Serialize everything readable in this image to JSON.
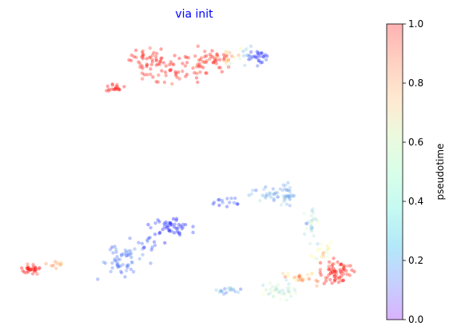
{
  "chart_data": {
    "type": "scatter",
    "title": "via init",
    "title_color": "#0000ff",
    "xlabel": "",
    "ylabel": "",
    "axes_visible": false,
    "grid": false,
    "xlim": [
      0,
      10
    ],
    "ylim": [
      0,
      10
    ],
    "colormap": "rainbow",
    "point_alpha": 0.35,
    "colorbar": {
      "label": "pseudotime",
      "range": [
        0.0,
        1.0
      ],
      "ticks": [
        "0.0",
        "0.2",
        "0.4",
        "0.6",
        "0.8",
        "1.0"
      ],
      "tick_values": [
        0.0,
        0.2,
        0.4,
        0.6,
        0.8,
        1.0
      ],
      "alpha": 0.3
    },
    "clusters": [
      {
        "x": 2.0,
        "y": 8.8,
        "sx": 0.25,
        "sy": 0.25,
        "t": 1.0,
        "dt": 0.05,
        "n": 40
      },
      {
        "x": 2.7,
        "y": 8.4,
        "sx": 0.3,
        "sy": 0.3,
        "t": 1.0,
        "dt": 0.05,
        "n": 35
      },
      {
        "x": 3.6,
        "y": 8.6,
        "sx": 0.3,
        "sy": 0.25,
        "t": 0.98,
        "dt": 0.05,
        "n": 30
      },
      {
        "x": 4.2,
        "y": 8.8,
        "sx": 0.25,
        "sy": 0.2,
        "t": 0.98,
        "dt": 0.05,
        "n": 30
      },
      {
        "x": 1.1,
        "y": 7.8,
        "sx": 0.15,
        "sy": 0.08,
        "t": 1.0,
        "dt": 0.03,
        "n": 18
      },
      {
        "x": 4.7,
        "y": 8.9,
        "sx": 0.15,
        "sy": 0.15,
        "t": 0.75,
        "dt": 0.12,
        "n": 15
      },
      {
        "x": 5.2,
        "y": 8.9,
        "sx": 0.15,
        "sy": 0.15,
        "t": 0.3,
        "dt": 0.06,
        "n": 12
      },
      {
        "x": 5.6,
        "y": 8.9,
        "sx": 0.15,
        "sy": 0.12,
        "t": 0.05,
        "dt": 0.04,
        "n": 25
      },
      {
        "x": -1.6,
        "y": 1.7,
        "sx": 0.15,
        "sy": 0.08,
        "t": 1.0,
        "dt": 0.04,
        "n": 30
      },
      {
        "x": -0.8,
        "y": 1.9,
        "sx": 0.15,
        "sy": 0.08,
        "t": 0.8,
        "dt": 0.08,
        "n": 10
      },
      {
        "x": 1.2,
        "y": 2.0,
        "sx": 0.3,
        "sy": 0.25,
        "t": 0.15,
        "dt": 0.03,
        "n": 55
      },
      {
        "x": 2.1,
        "y": 2.6,
        "sx": 0.2,
        "sy": 0.15,
        "t": 0.1,
        "dt": 0.04,
        "n": 15
      },
      {
        "x": 2.8,
        "y": 3.2,
        "sx": 0.3,
        "sy": 0.15,
        "t": 0.03,
        "dt": 0.03,
        "n": 45
      },
      {
        "x": 4.4,
        "y": 4.0,
        "sx": 0.3,
        "sy": 0.08,
        "t": 0.1,
        "dt": 0.05,
        "n": 15
      },
      {
        "x": 5.9,
        "y": 4.2,
        "sx": 0.3,
        "sy": 0.15,
        "t": 0.22,
        "dt": 0.05,
        "n": 30
      },
      {
        "x": 6.5,
        "y": 4.2,
        "sx": 0.15,
        "sy": 0.2,
        "t": 0.25,
        "dt": 0.05,
        "n": 30
      },
      {
        "x": 7.2,
        "y": 3.3,
        "sx": 0.15,
        "sy": 0.25,
        "t": 0.35,
        "dt": 0.08,
        "n": 25
      },
      {
        "x": 7.6,
        "y": 2.4,
        "sx": 0.15,
        "sy": 0.2,
        "t": 0.55,
        "dt": 0.1,
        "n": 20
      },
      {
        "x": 8.0,
        "y": 1.6,
        "sx": 0.25,
        "sy": 0.2,
        "t": 0.98,
        "dt": 0.05,
        "n": 65
      },
      {
        "x": 6.9,
        "y": 1.4,
        "sx": 0.25,
        "sy": 0.12,
        "t": 0.75,
        "dt": 0.12,
        "n": 25
      },
      {
        "x": 6.2,
        "y": 1.0,
        "sx": 0.3,
        "sy": 0.15,
        "t": 0.38,
        "dt": 0.06,
        "n": 40
      },
      {
        "x": 4.6,
        "y": 1.0,
        "sx": 0.2,
        "sy": 0.06,
        "t": 0.25,
        "dt": 0.05,
        "n": 20
      }
    ]
  }
}
